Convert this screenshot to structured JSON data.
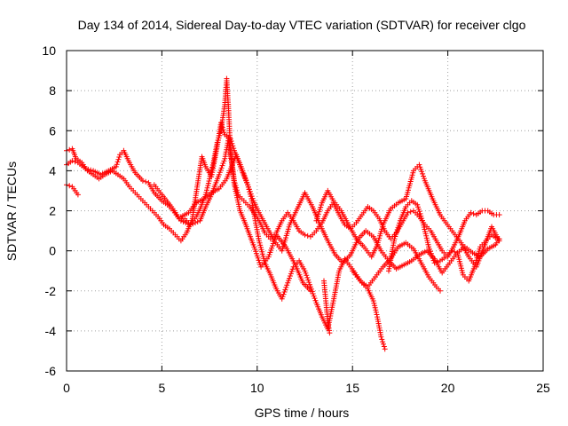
{
  "chart_data": {
    "type": "scatter",
    "title": "Day 134 of 2014, Sidereal Day-to-day VTEC variation (SDTVAR) for receiver clgo",
    "xlabel": "GPS time / hours",
    "ylabel": "SDTVAR / TECUs",
    "xlim": [
      0,
      25
    ],
    "ylim": [
      -6,
      10
    ],
    "xticks": [
      0,
      5,
      10,
      15,
      20,
      25
    ],
    "yticks": [
      -6,
      -4,
      -2,
      0,
      2,
      4,
      6,
      8,
      10
    ],
    "grid": true,
    "marker": "+",
    "color": "#ff0000",
    "series": [
      {
        "name": "trace-1",
        "points": [
          [
            0.0,
            4.3
          ],
          [
            0.3,
            4.5
          ],
          [
            0.6,
            4.4
          ],
          [
            1.0,
            4.1
          ],
          [
            1.4,
            4.0
          ],
          [
            1.8,
            3.8
          ],
          [
            2.2,
            4.0
          ],
          [
            2.6,
            4.2
          ],
          [
            2.8,
            4.8
          ],
          [
            3.0,
            5.0
          ],
          [
            3.3,
            4.4
          ],
          [
            3.6,
            3.9
          ],
          [
            4.0,
            3.5
          ],
          [
            4.3,
            3.4
          ],
          [
            4.6,
            2.9
          ],
          [
            5.0,
            2.5
          ],
          [
            5.3,
            2.3
          ],
          [
            5.6,
            2.0
          ],
          [
            5.9,
            1.6
          ],
          [
            6.2,
            1.6
          ],
          [
            6.5,
            1.3
          ],
          [
            6.8,
            1.7
          ],
          [
            7.0,
            2.1
          ],
          [
            7.3,
            2.8
          ],
          [
            7.5,
            3.6
          ],
          [
            7.7,
            4.4
          ],
          [
            7.9,
            5.4
          ],
          [
            8.1,
            6.0
          ],
          [
            8.3,
            7.3
          ],
          [
            8.4,
            8.6
          ],
          [
            8.5,
            7.0
          ],
          [
            8.6,
            5.0
          ],
          [
            8.8,
            3.5
          ],
          [
            9.0,
            2.8
          ],
          [
            9.3,
            2.5
          ],
          [
            9.6,
            2.2
          ],
          [
            9.9,
            1.8
          ],
          [
            10.1,
            1.5
          ],
          [
            10.4,
            0.9
          ],
          [
            10.7,
            0.6
          ],
          [
            11.0,
            0.9
          ],
          [
            11.3,
            1.5
          ],
          [
            11.6,
            1.9
          ],
          [
            11.9,
            1.5
          ],
          [
            12.2,
            1.0
          ],
          [
            12.5,
            0.8
          ],
          [
            12.8,
            0.7
          ],
          [
            13.1,
            1.0
          ],
          [
            13.4,
            1.4
          ],
          [
            13.7,
            2.0
          ],
          [
            14.0,
            2.4
          ],
          [
            14.3,
            1.8
          ],
          [
            14.6,
            1.3
          ],
          [
            14.9,
            1.1
          ],
          [
            15.2,
            1.4
          ],
          [
            15.5,
            1.8
          ],
          [
            15.8,
            2.2
          ],
          [
            16.1,
            2.0
          ],
          [
            16.4,
            1.6
          ],
          [
            16.7,
            1.0
          ],
          [
            17.0,
            0.6
          ],
          [
            17.3,
            0.9
          ],
          [
            17.6,
            1.4
          ],
          [
            17.9,
            1.9
          ],
          [
            18.2,
            2.0
          ],
          [
            18.5,
            1.7
          ],
          [
            18.8,
            1.3
          ],
          [
            19.1,
            1.0
          ],
          [
            19.4,
            0.5
          ],
          [
            19.7,
            0.0
          ],
          [
            20.0,
            -0.3
          ],
          [
            20.3,
            0.2
          ],
          [
            20.6,
            0.8
          ],
          [
            20.9,
            1.5
          ],
          [
            21.2,
            1.9
          ],
          [
            21.5,
            1.8
          ],
          [
            21.8,
            2.0
          ],
          [
            22.1,
            2.0
          ],
          [
            22.4,
            1.8
          ],
          [
            22.7,
            1.8
          ]
        ]
      },
      {
        "name": "trace-2",
        "points": [
          [
            0.0,
            5.0
          ],
          [
            0.3,
            5.1
          ],
          [
            0.5,
            4.6
          ],
          [
            0.8,
            4.4
          ],
          [
            1.1,
            4.0
          ],
          [
            1.4,
            3.8
          ],
          [
            1.7,
            3.6
          ],
          [
            2.0,
            3.8
          ],
          [
            2.4,
            4.0
          ],
          [
            2.7,
            3.8
          ],
          [
            3.0,
            3.6
          ],
          [
            3.3,
            3.2
          ],
          [
            3.6,
            2.9
          ],
          [
            3.9,
            2.6
          ],
          [
            4.2,
            2.3
          ],
          [
            4.5,
            2.0
          ],
          [
            4.8,
            1.7
          ],
          [
            5.1,
            1.3
          ],
          [
            5.4,
            1.1
          ],
          [
            5.7,
            0.8
          ],
          [
            6.0,
            0.5
          ],
          [
            6.3,
            0.9
          ],
          [
            6.6,
            1.6
          ],
          [
            6.9,
            3.5
          ],
          [
            7.1,
            4.7
          ],
          [
            7.3,
            4.2
          ],
          [
            7.6,
            3.7
          ],
          [
            7.9,
            5.2
          ],
          [
            8.1,
            6.4
          ],
          [
            8.3,
            5.8
          ],
          [
            8.6,
            5.6
          ],
          [
            8.8,
            5.0
          ],
          [
            9.0,
            4.5
          ],
          [
            9.2,
            4.0
          ],
          [
            9.5,
            3.3
          ],
          [
            9.7,
            2.6
          ],
          [
            9.9,
            1.5
          ],
          [
            10.1,
            0.5
          ],
          [
            10.4,
            -0.6
          ],
          [
            10.7,
            -1.2
          ],
          [
            11.0,
            -1.9
          ],
          [
            11.3,
            -2.4
          ],
          [
            11.6,
            -1.6
          ],
          [
            11.9,
            -0.8
          ],
          [
            12.2,
            -0.5
          ],
          [
            12.5,
            -1.0
          ],
          [
            12.8,
            -1.8
          ],
          [
            13.1,
            -2.6
          ],
          [
            13.4,
            -3.3
          ],
          [
            13.7,
            -3.9
          ],
          [
            14.0,
            -2.5
          ],
          [
            14.3,
            -1.0
          ],
          [
            14.6,
            -0.4
          ],
          [
            14.9,
            -0.8
          ],
          [
            15.2,
            -1.2
          ],
          [
            15.5,
            -1.6
          ],
          [
            15.8,
            -1.9
          ],
          [
            16.1,
            -2.5
          ],
          [
            16.3,
            -3.3
          ],
          [
            16.5,
            -4.3
          ],
          [
            16.7,
            -4.9
          ],
          [
            16.9,
            -1.0
          ],
          [
            17.2,
            0.6
          ],
          [
            17.5,
            1.5
          ],
          [
            17.8,
            2.2
          ],
          [
            18.1,
            2.5
          ],
          [
            18.4,
            2.3
          ],
          [
            18.7,
            1.4
          ],
          [
            19.0,
            0.2
          ],
          [
            19.3,
            -0.6
          ],
          [
            19.6,
            -0.5
          ],
          [
            19.9,
            -0.3
          ],
          [
            20.2,
            0.0
          ],
          [
            20.5,
            -0.1
          ],
          [
            20.8,
            -1.2
          ],
          [
            21.1,
            -1.5
          ],
          [
            21.4,
            -0.8
          ],
          [
            21.7,
            0.2
          ],
          [
            22.0,
            0.5
          ],
          [
            22.3,
            0.8
          ],
          [
            22.6,
            0.6
          ]
        ]
      },
      {
        "name": "trace-3",
        "points": [
          [
            0.0,
            3.3
          ],
          [
            0.3,
            3.2
          ],
          [
            0.6,
            2.8
          ],
          [
            4.6,
            3.3
          ],
          [
            5.0,
            2.8
          ],
          [
            5.5,
            2.2
          ],
          [
            6.0,
            1.5
          ],
          [
            6.5,
            1.3
          ],
          [
            7.0,
            1.5
          ],
          [
            7.3,
            2.2
          ],
          [
            7.6,
            2.8
          ],
          [
            8.0,
            3.8
          ],
          [
            8.3,
            4.6
          ],
          [
            8.5,
            5.6
          ],
          [
            8.8,
            3.3
          ],
          [
            9.1,
            2.0
          ],
          [
            9.4,
            1.3
          ],
          [
            9.8,
            0.3
          ],
          [
            10.2,
            -0.8
          ],
          [
            10.6,
            -0.3
          ],
          [
            11.0,
            0.8
          ],
          [
            11.5,
            0.2
          ],
          [
            12.0,
            -0.7
          ],
          [
            12.4,
            -1.6
          ],
          [
            12.8,
            -2.0
          ],
          [
            13.1,
            1.5
          ],
          [
            13.4,
            2.4
          ],
          [
            13.7,
            3.0
          ],
          [
            14.0,
            2.5
          ],
          [
            14.4,
            2.0
          ],
          [
            14.8,
            1.3
          ],
          [
            15.2,
            0.6
          ],
          [
            15.6,
            0.2
          ],
          [
            16.0,
            -0.3
          ],
          [
            16.3,
            0.3
          ],
          [
            16.6,
            1.3
          ],
          [
            17.0,
            2.1
          ],
          [
            17.4,
            2.4
          ],
          [
            17.8,
            2.6
          ],
          [
            18.2,
            4.0
          ],
          [
            18.5,
            4.3
          ],
          [
            18.8,
            3.5
          ],
          [
            19.2,
            2.6
          ],
          [
            19.6,
            1.8
          ],
          [
            19.9,
            1.4
          ],
          [
            20.3,
            0.9
          ],
          [
            20.7,
            0.4
          ],
          [
            21.1,
            -0.3
          ],
          [
            21.5,
            -0.8
          ],
          [
            21.9,
            0.2
          ],
          [
            22.3,
            1.2
          ],
          [
            22.7,
            0.5
          ]
        ]
      },
      {
        "name": "trace-4",
        "points": [
          [
            6.0,
            1.7
          ],
          [
            6.4,
            1.9
          ],
          [
            6.8,
            2.4
          ],
          [
            7.2,
            2.6
          ],
          [
            7.6,
            2.9
          ],
          [
            8.0,
            3.1
          ],
          [
            8.4,
            3.6
          ],
          [
            8.9,
            4.8
          ],
          [
            9.2,
            4.1
          ],
          [
            9.5,
            3.3
          ],
          [
            9.8,
            2.5
          ],
          [
            10.1,
            1.9
          ],
          [
            10.5,
            1.2
          ],
          [
            10.9,
            0.5
          ],
          [
            11.3,
            0.0
          ],
          [
            11.7,
            1.3
          ],
          [
            12.1,
            2.1
          ],
          [
            12.5,
            2.9
          ],
          [
            12.9,
            2.2
          ],
          [
            13.3,
            1.3
          ],
          [
            13.7,
            0.5
          ],
          [
            14.1,
            -0.2
          ],
          [
            14.5,
            -0.6
          ],
          [
            14.9,
            -0.2
          ],
          [
            15.3,
            0.6
          ],
          [
            15.7,
            1.0
          ],
          [
            16.1,
            0.7
          ],
          [
            16.5,
            0.0
          ],
          [
            16.9,
            -0.5
          ],
          [
            17.3,
            -0.9
          ],
          [
            17.7,
            -0.7
          ],
          [
            18.1,
            -0.5
          ],
          [
            18.5,
            -0.2
          ],
          [
            18.9,
            0.0
          ],
          [
            19.3,
            -0.4
          ],
          [
            19.7,
            -1.1
          ],
          [
            20.1,
            -0.6
          ],
          [
            20.5,
            -0.1
          ],
          [
            20.9,
            0.2
          ],
          [
            21.3,
            -0.1
          ],
          [
            21.7,
            -0.3
          ],
          [
            22.1,
            0.1
          ],
          [
            22.5,
            0.3
          ],
          [
            22.7,
            0.6
          ],
          [
            15.0,
            -1.0
          ],
          [
            15.4,
            -1.5
          ],
          [
            15.8,
            -1.8
          ],
          [
            16.2,
            -1.3
          ],
          [
            16.6,
            -0.8
          ],
          [
            17.0,
            -0.4
          ],
          [
            17.4,
            0.2
          ],
          [
            17.8,
            0.4
          ],
          [
            18.2,
            0.1
          ],
          [
            18.6,
            -0.6
          ],
          [
            19.0,
            -1.3
          ],
          [
            19.4,
            -1.8
          ],
          [
            19.6,
            -2.0
          ],
          [
            13.5,
            -1.5
          ],
          [
            13.6,
            -2.5
          ],
          [
            13.7,
            -3.5
          ],
          [
            13.8,
            -4.1
          ]
        ]
      }
    ]
  }
}
